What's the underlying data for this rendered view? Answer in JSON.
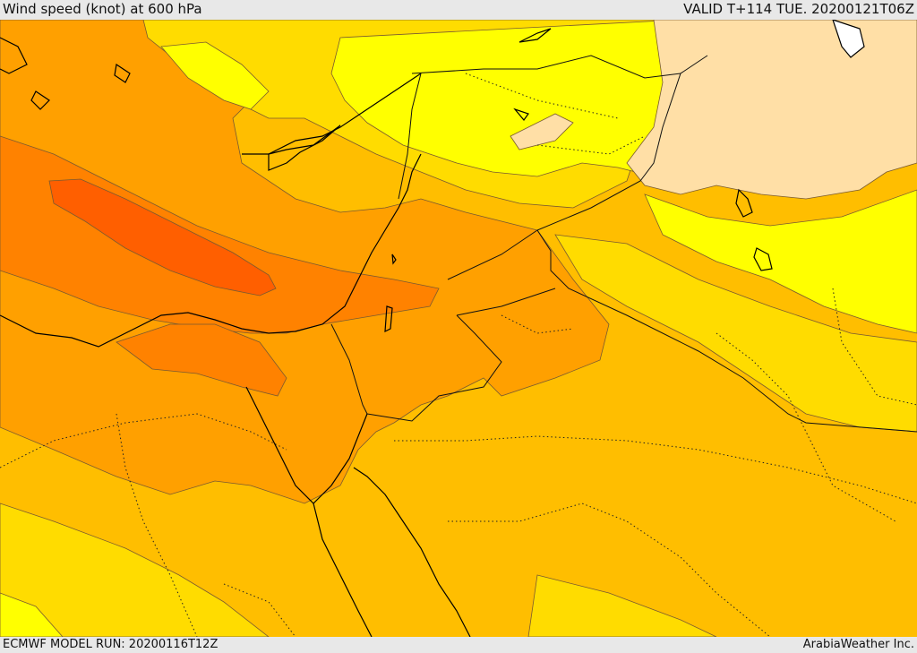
{
  "header": {
    "title": "Wind speed (knot) at 600 hPa",
    "valid": "VALID T+114 TUE. 20200121T06Z"
  },
  "footer": {
    "model_run": "ECMWF MODEL RUN: 20200116T12Z",
    "credit": "ArabiaWeather Inc."
  },
  "map": {
    "fill_colors": {
      "very_light": "#ffdfa6",
      "yellow": "#ffff00",
      "gold": "#ffdc00",
      "amber": "#ffbe00",
      "orange": "#ffa000",
      "dark_orange": "#ff8200",
      "red_orange": "#ff5f00"
    }
  }
}
